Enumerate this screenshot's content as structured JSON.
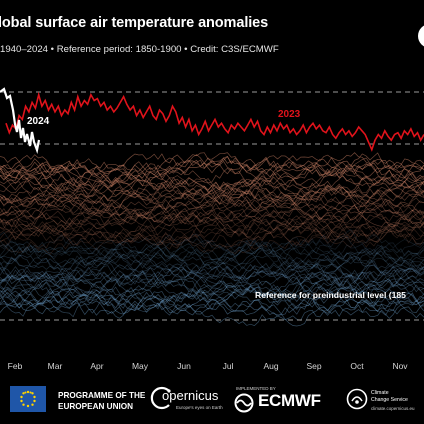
{
  "header": {
    "title": "lobal surface air temperature anomalies",
    "subtitle": "1940–2024 • Reference period: 1850-1900 • Credit: C3S/ECMWF"
  },
  "chart_data": {
    "type": "line",
    "months": [
      "Feb",
      "Mar",
      "Apr",
      "May",
      "Jun",
      "Jul",
      "Aug",
      "Sep",
      "Oct",
      "Nov"
    ],
    "reference_label": "Reference for preindustrial level (185",
    "series_labels": {
      "y2023": "2023",
      "y2024": "2024"
    },
    "colors": {
      "y2023": "#e0131b",
      "y2024": "#ffffff",
      "warm_years": "#d98a6c",
      "cool_years": "#6fa3cf",
      "dashed_lines": "#9a9a9a"
    },
    "reference_lines": [
      {
        "style": "dashed",
        "note": "upper"
      },
      {
        "style": "dashed",
        "note": "lower"
      },
      {
        "style": "dashed",
        "note": "preindustrial"
      }
    ],
    "y2023_shape": [
      0.22,
      0.12,
      0.2,
      0.16,
      0.3,
      0.26,
      0.4,
      0.34,
      0.44,
      0.38,
      0.52,
      0.4,
      0.46,
      0.36,
      0.42,
      0.34,
      0.4,
      0.3,
      0.36,
      0.32,
      0.44,
      0.36,
      0.5,
      0.4,
      0.46,
      0.42,
      0.52,
      0.46,
      0.48,
      0.4,
      0.44,
      0.36,
      0.4,
      0.34,
      0.38,
      0.44,
      0.5,
      0.42,
      0.36,
      0.4,
      0.3,
      0.36,
      0.28,
      0.34,
      0.4,
      0.3,
      0.26,
      0.36,
      0.32,
      0.24,
      0.3,
      0.4,
      0.34,
      0.22,
      0.28,
      0.18,
      0.26,
      0.14,
      0.2,
      0.1,
      0.16,
      0.24,
      0.14,
      0.2,
      0.26,
      0.18,
      0.22,
      0.16,
      0.12,
      0.2,
      0.16,
      0.22,
      0.18,
      0.14,
      0.2,
      0.26,
      0.18,
      0.24,
      0.14,
      0.1,
      0.18,
      0.12,
      0.2,
      0.14,
      0.22,
      0.16,
      0.2,
      0.12,
      0.16,
      0.1,
      0.14,
      0.2,
      0.12,
      0.18,
      0.22,
      0.16,
      0.2,
      0.14,
      0.12,
      0.18,
      0.1,
      0.06,
      0.12,
      0.16,
      0.1,
      0.14,
      0.08,
      0.12,
      0.18,
      0.14,
      0.1,
      0.02,
      -0.06,
      0.04,
      0.1,
      0.06,
      0.14,
      0.08,
      0.04,
      0.1,
      0.12,
      0.06,
      0.14,
      0.1,
      0.16,
      0.08,
      0.12,
      0.04,
      0.1
    ],
    "y2024_shape": [
      -0.04,
      0.02,
      -0.06,
      0.04,
      -0.02,
      0.08,
      0.16,
      0.24,
      0.3,
      0.26,
      0.34,
      0.28,
      0.36,
      0.3,
      0.38,
      0.32
    ]
  },
  "footer": {
    "eu_line1": "PROGRAMME OF THE",
    "eu_line2": "EUROPEAN UNION",
    "copernicus": "opernicus",
    "copernicus_sub": "Europe's eyes on Earth",
    "ecmwf_small": "IMPLEMENTED BY",
    "ecmwf": "ECMWF",
    "c3s_line1": "Climate",
    "c3s_line2": "Change Service",
    "c3s_url": "climate.copernicus.eu"
  }
}
